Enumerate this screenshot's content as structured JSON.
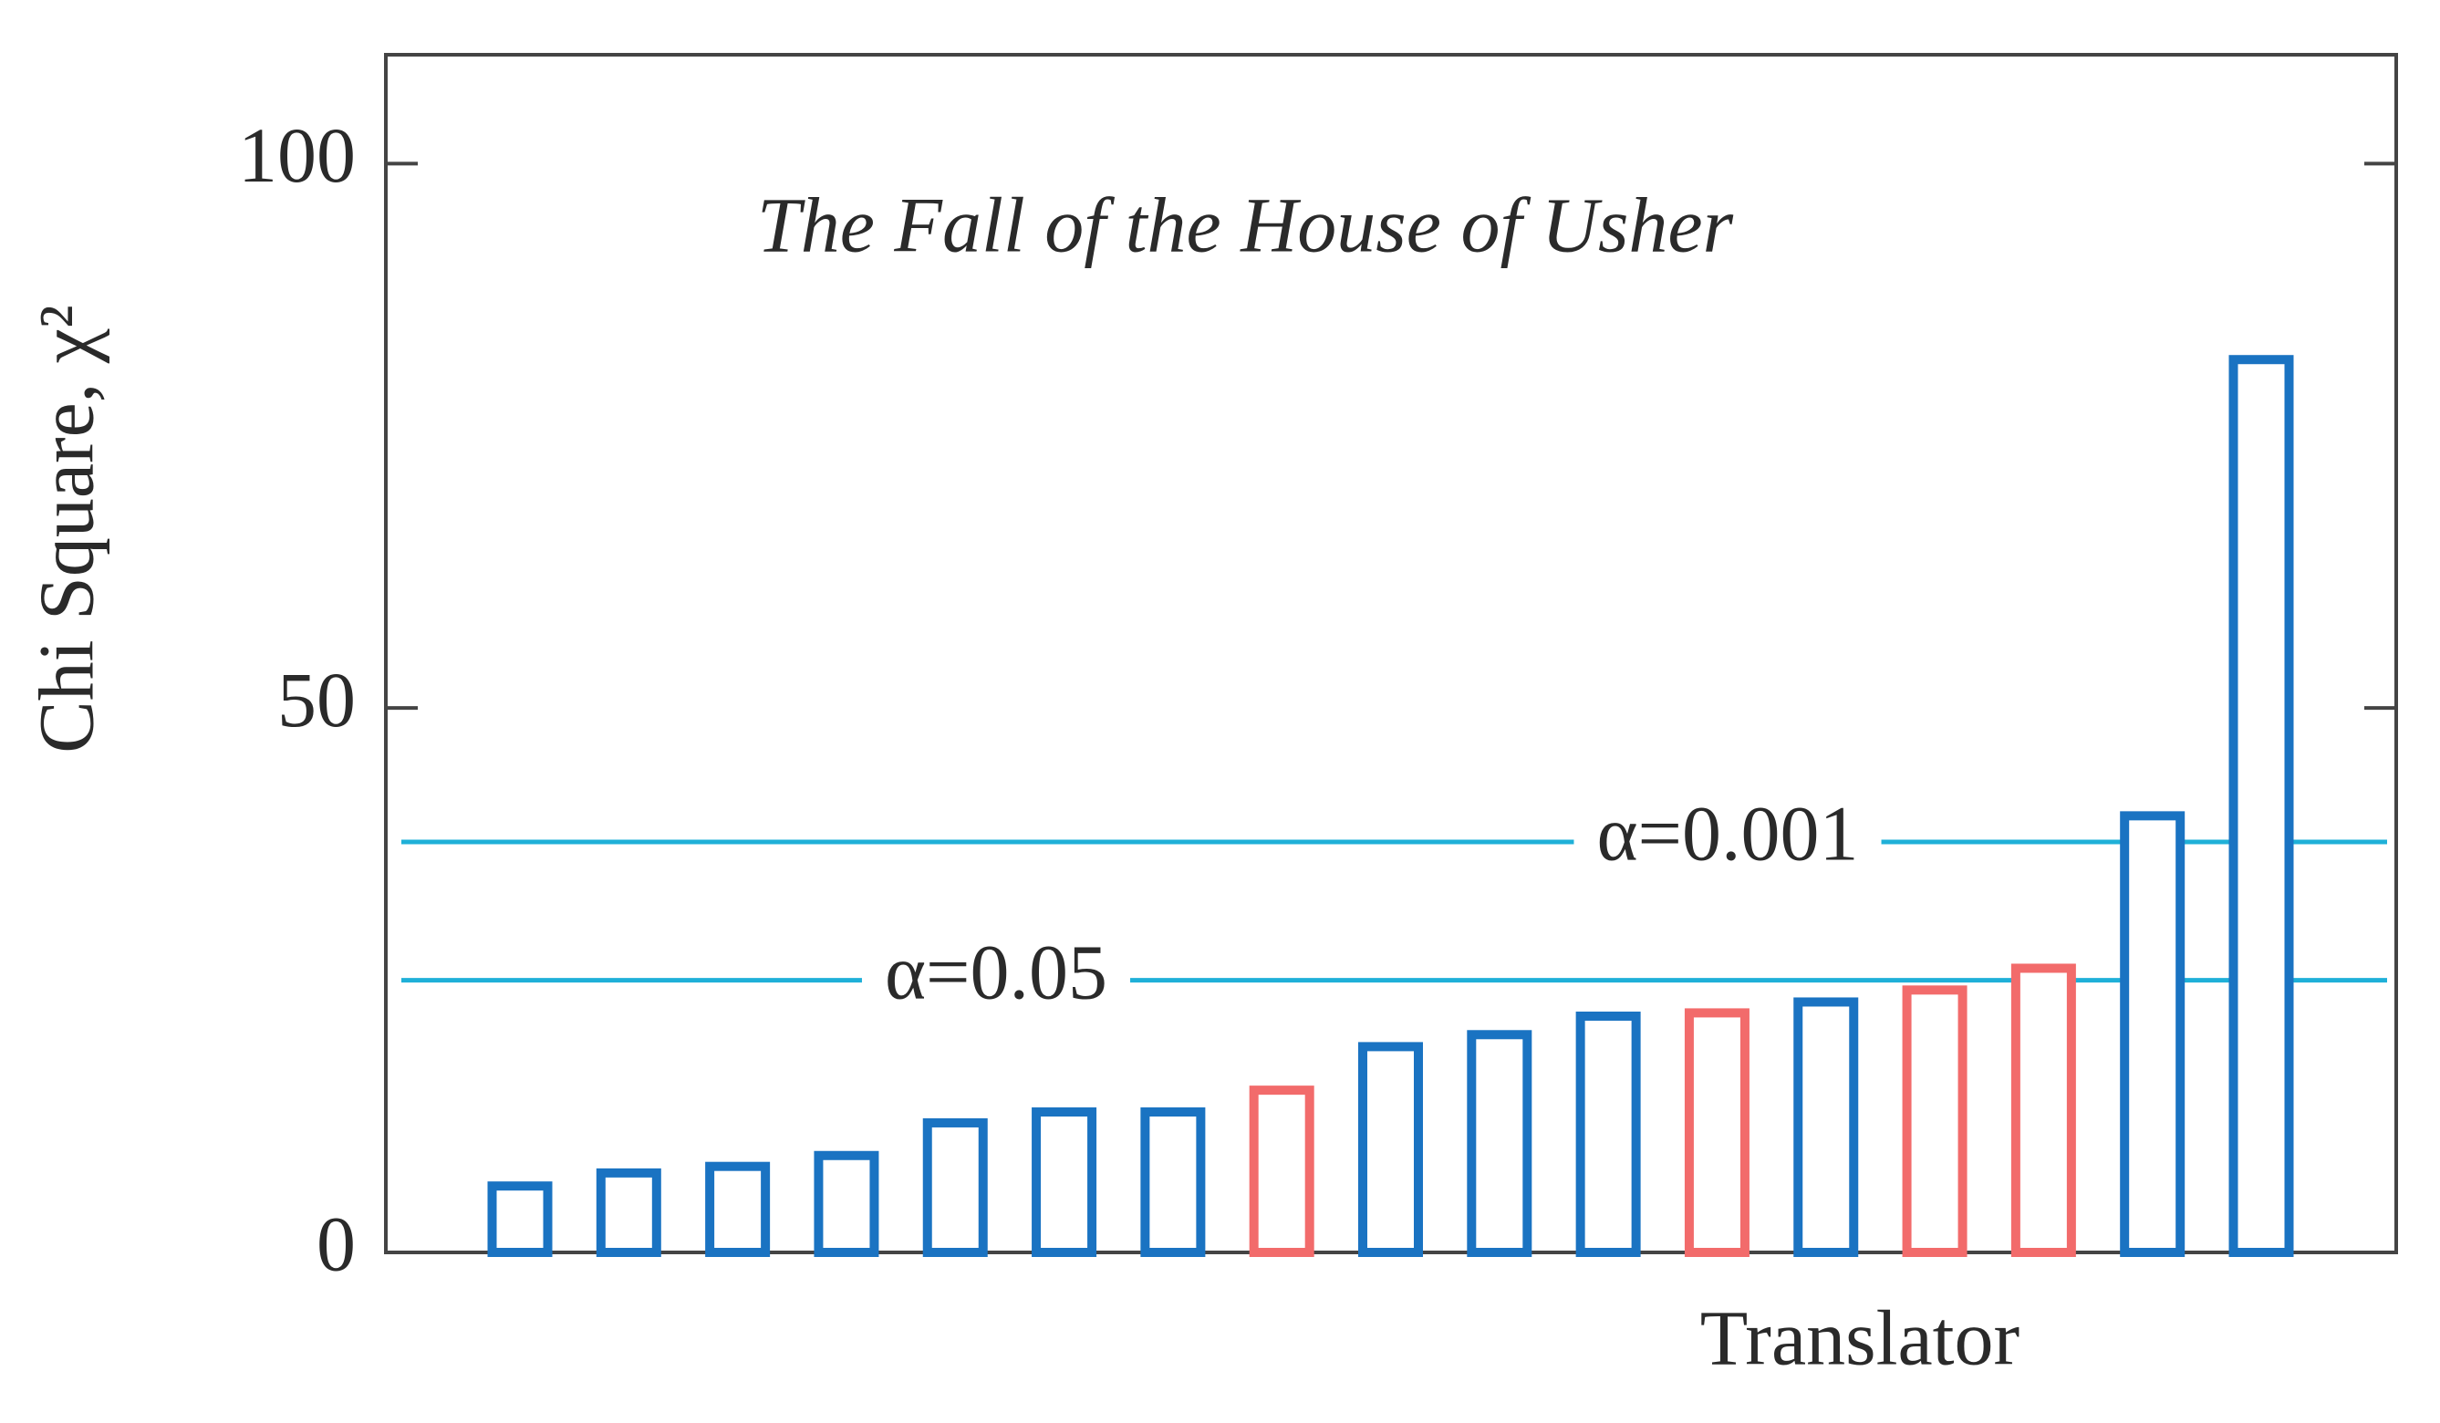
{
  "chart_data": {
    "type": "bar",
    "title": "The Fall of the House of Usher",
    "x_label": "Translator",
    "y_label": "Chi Square, χ²",
    "categories": [
      null,
      null,
      null,
      null,
      null,
      null,
      null,
      null,
      null,
      null,
      null,
      null,
      null,
      null,
      null,
      null,
      null
    ],
    "values": [
      6.1,
      7.3,
      7.9,
      8.9,
      11.9,
      12.9,
      12.9,
      14.9,
      18.9,
      20.0,
      21.7,
      22.0,
      23.0,
      24.1,
      26.1,
      40.1,
      82.0
    ],
    "colors": [
      "#1a73c2",
      "#1a73c2",
      "#1a73c2",
      "#1a73c2",
      "#1a73c2",
      "#1a73c2",
      "#1a73c2",
      "#f26b6b",
      "#1a73c2",
      "#1a73c2",
      "#1a73c2",
      "#f26b6b",
      "#1a73c2",
      "#f26b6b",
      "#f26b6b",
      "#1a73c2",
      "#1a73c2"
    ],
    "reference_lines": [
      {
        "value": 25.0,
        "label": "α=0.05",
        "color": "#1fb0d8"
      },
      {
        "value": 37.7,
        "label": "α=0.001",
        "color": "#1fb0d8"
      }
    ],
    "ylim": [
      0,
      110
    ],
    "yticks": [
      0,
      50,
      100
    ],
    "grid": false
  }
}
